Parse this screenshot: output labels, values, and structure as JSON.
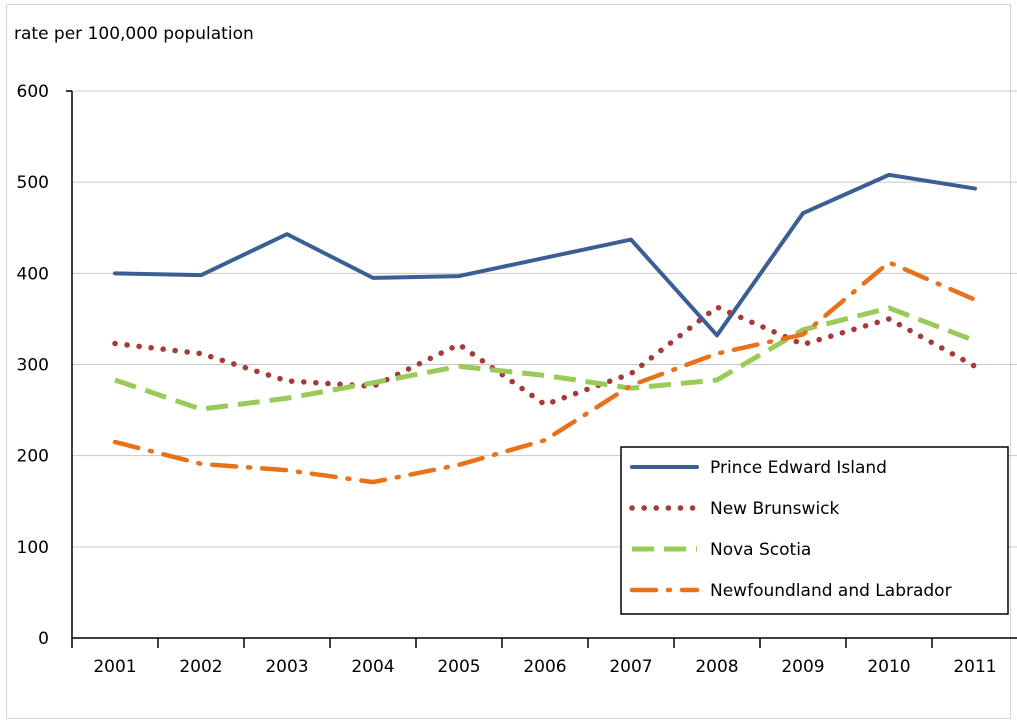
{
  "chart_data": {
    "type": "line",
    "title": "",
    "ylabel": "rate per 100,000 population",
    "xlabel": "",
    "ylim": [
      0,
      600
    ],
    "yticks": [
      0,
      100,
      200,
      300,
      400,
      500,
      600
    ],
    "grid": true,
    "legend_position": "bottom-right",
    "categories": [
      "2001",
      "2002",
      "2003",
      "2004",
      "2005",
      "2006",
      "2007",
      "2008",
      "2009",
      "2010",
      "2011"
    ],
    "series": [
      {
        "name": "Prince Edward Island",
        "color": "#3a5f94",
        "style": "solid",
        "values": [
          400,
          398,
          443,
          395,
          397,
          417,
          437,
          332,
          466,
          508,
          493
        ]
      },
      {
        "name": "New Brunswick",
        "color": "#a53a3a",
        "style": "dotted",
        "values": [
          323,
          312,
          282,
          276,
          322,
          256,
          290,
          363,
          322,
          350,
          298
        ]
      },
      {
        "name": "Nova Scotia",
        "color": "#9acb5a",
        "style": "dashed",
        "values": [
          283,
          251,
          263,
          280,
          298,
          288,
          274,
          283,
          338,
          362,
          326
        ]
      },
      {
        "name": "Newfoundland and Labrador",
        "color": "#e8711a",
        "style": "dashdot",
        "values": [
          215,
          191,
          184,
          171,
          190,
          217,
          277,
          312,
          333,
          412,
          371
        ]
      }
    ]
  }
}
